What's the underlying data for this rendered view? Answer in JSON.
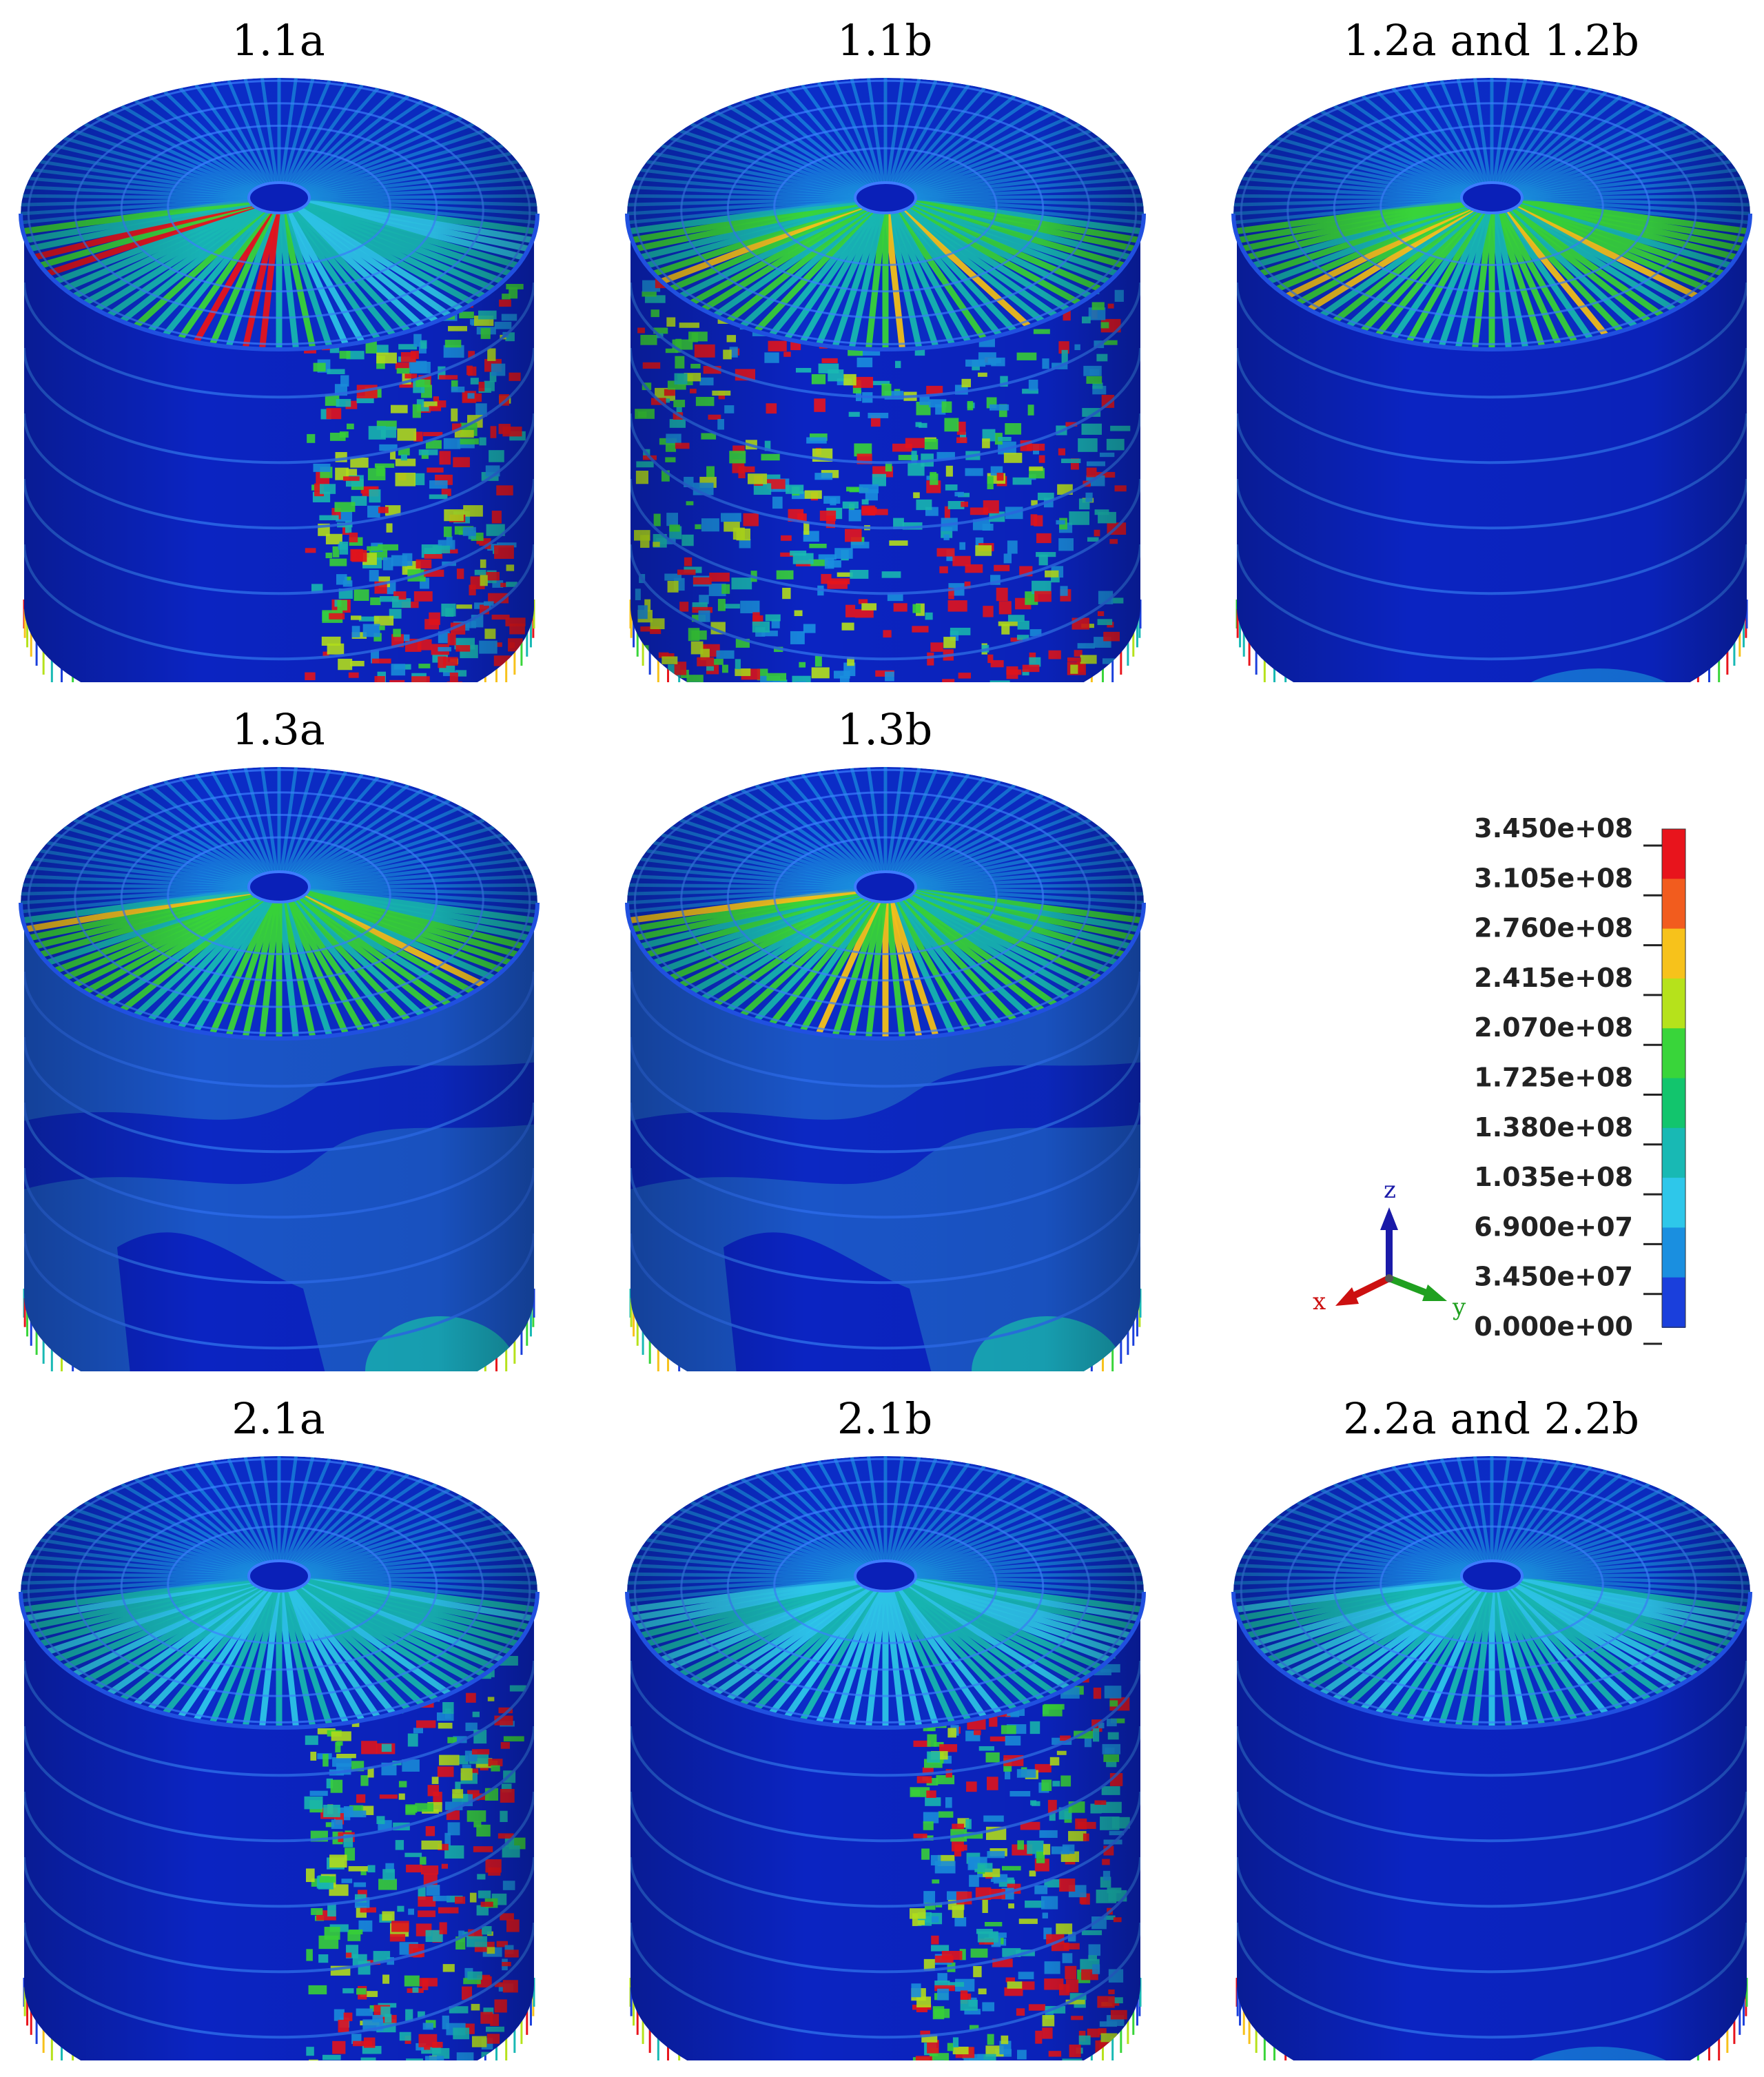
{
  "panels": [
    {
      "title": "1.1a",
      "pattern": "shell-right-high",
      "roof": "high-left"
    },
    {
      "title": "1.1b",
      "pattern": "shell-wide-high",
      "roof": "medium"
    },
    {
      "title": "1.2a and 1.2b",
      "pattern": "low",
      "roof": "medium"
    },
    {
      "title": "1.3a",
      "pattern": "mid-bands",
      "roof": "medium-high"
    },
    {
      "title": "1.3b",
      "pattern": "mid-bands",
      "roof": "medium-high"
    },
    {
      "title": "2.1a",
      "pattern": "shell-right-high",
      "roof": "low"
    },
    {
      "title": "2.1b",
      "pattern": "shell-right-high",
      "roof": "low"
    },
    {
      "title": "2.2a and 2.2b",
      "pattern": "low",
      "roof": "low"
    }
  ],
  "legend": {
    "labels": [
      "3.450e+08",
      "3.105e+08",
      "2.760e+08",
      "2.415e+08",
      "2.070e+08",
      "1.725e+08",
      "1.380e+08",
      "1.035e+08",
      "6.900e+07",
      "3.450e+07",
      "0.000e+00"
    ],
    "colors": [
      "#e8141c",
      "#f25c1e",
      "#f7c21b",
      "#b6e21b",
      "#39d53a",
      "#12c56d",
      "#18b9b4",
      "#2ec7ea",
      "#1a8fe0",
      "#1a3fdc",
      "#0a22d6"
    ]
  },
  "axes": {
    "z": "z",
    "x": "x",
    "y": "y",
    "colors": {
      "z": "#1a1aa8",
      "x": "#cc1010",
      "y": "#20a020"
    }
  }
}
